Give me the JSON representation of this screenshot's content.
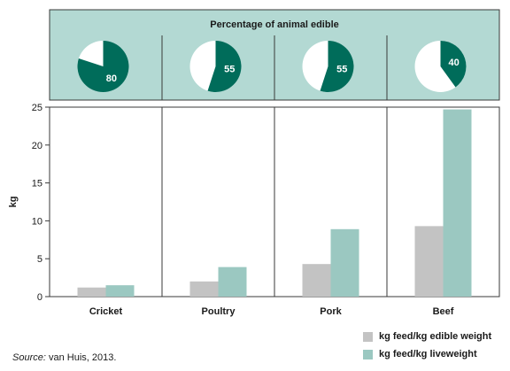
{
  "chart_data": {
    "type": "bar",
    "categories": [
      "Cricket",
      "Poultry",
      "Pork",
      "Beef"
    ],
    "series": [
      {
        "name": "kg feed/kg edible weight",
        "values": [
          1.2,
          2.0,
          4.3,
          9.3
        ],
        "color": "#c3c3c3"
      },
      {
        "name": "kg feed/kg liveweight",
        "values": [
          1.5,
          3.9,
          8.9,
          24.7
        ],
        "color": "#9bc8c1"
      }
    ],
    "ylabel": "kg",
    "ylim": [
      0,
      25
    ],
    "yticks": [
      0,
      5,
      10,
      15,
      20,
      25
    ],
    "grid": false,
    "legend": "bottom-right",
    "inset": {
      "type": "pie",
      "title": "Percentage of animal edible",
      "values": [
        80,
        55,
        55,
        40
      ],
      "labels": [
        "80",
        "55",
        "55",
        "40"
      ],
      "edible_color": "#006c5a",
      "remainder_color": "#ffffff",
      "background": "#b3d9d3"
    }
  },
  "source": {
    "label": "Source:",
    "text": "van Huis, 2013."
  }
}
